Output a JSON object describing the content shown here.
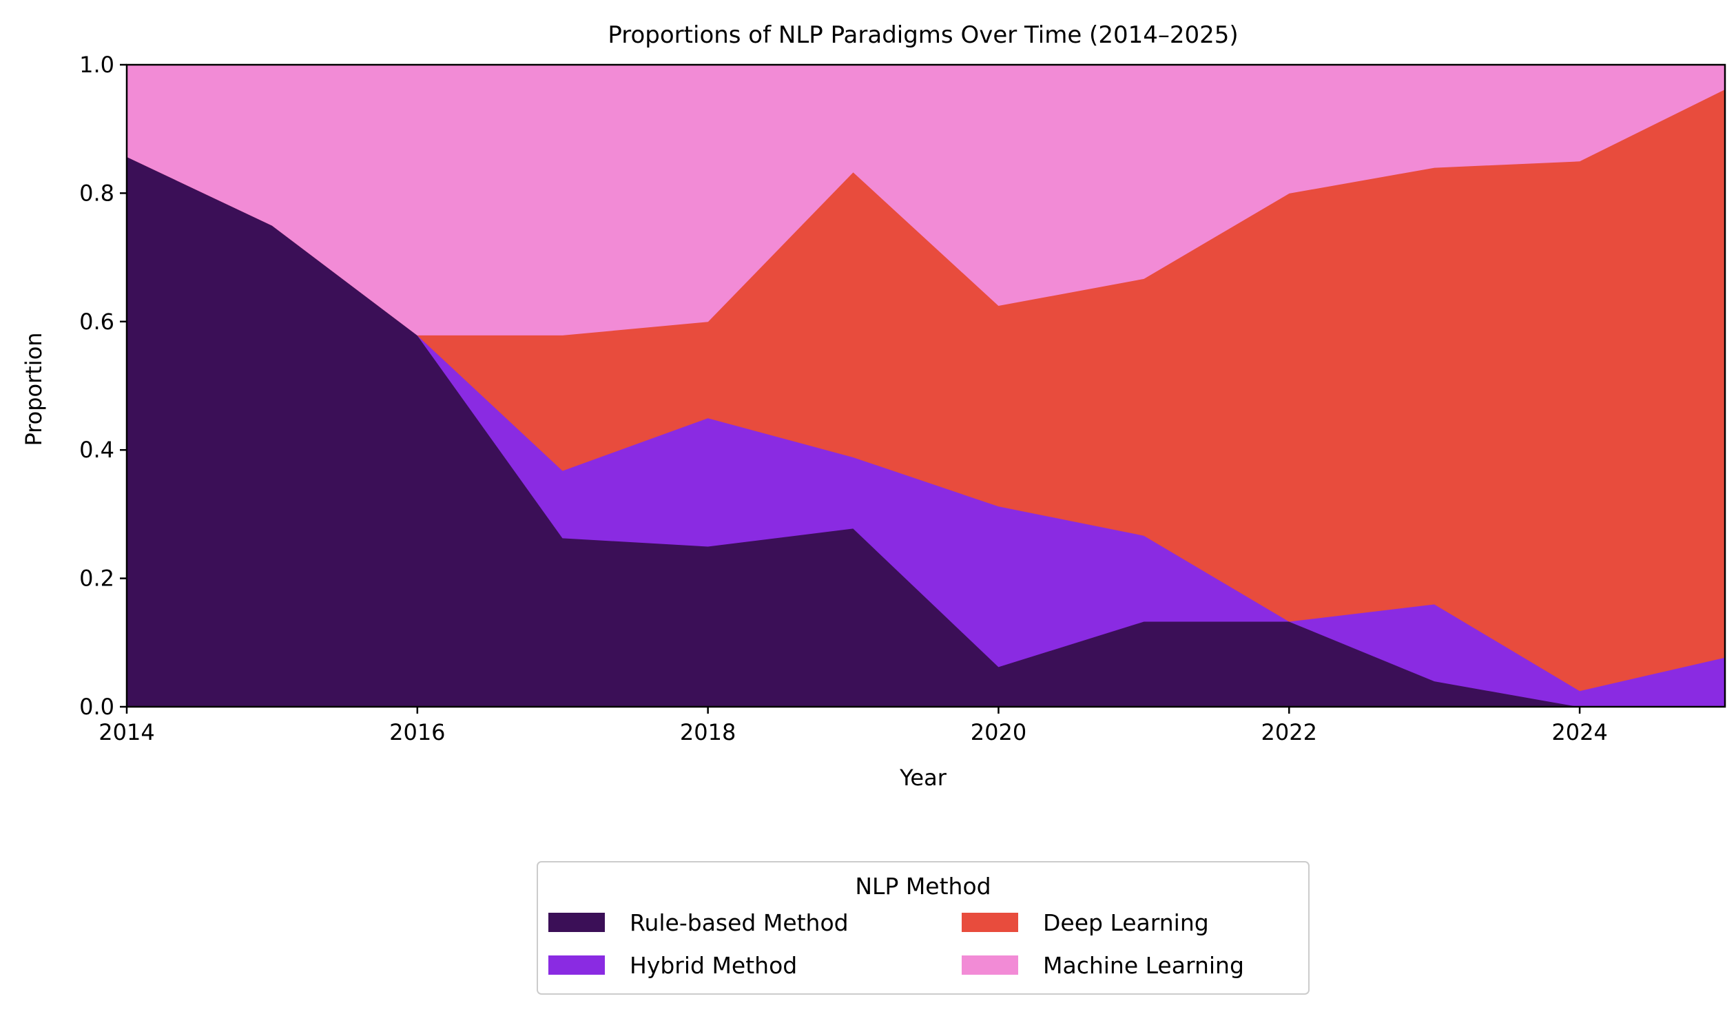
{
  "chart_data": {
    "type": "area",
    "stacked": true,
    "title": "Proportions of NLP Paradigms Over Time (2014–2025)",
    "xlabel": "Year",
    "ylabel": "Proportion",
    "xlim": [
      2014,
      2025
    ],
    "ylim": [
      0,
      1
    ],
    "x_ticks": [
      2014,
      2016,
      2018,
      2020,
      2022,
      2024
    ],
    "x_tick_labels": [
      "2014",
      "2016",
      "2018",
      "2020",
      "2022",
      "2024"
    ],
    "y_ticks": [
      0,
      0.2,
      0.4,
      0.6,
      0.8,
      1.0
    ],
    "y_tick_labels": [
      "0.0",
      "0.2",
      "0.4",
      "0.6",
      "0.8",
      "1.0"
    ],
    "grid": false,
    "legend": {
      "title": "NLP Method",
      "placement": "below-center",
      "columns": 2
    },
    "x": [
      2014,
      2015,
      2016,
      2017,
      2018,
      2019,
      2020,
      2021,
      2022,
      2023,
      2024,
      2025
    ],
    "series": [
      {
        "name": "Rule-based Method",
        "color": "#3b0f57",
        "values": [
          0.857,
          0.75,
          0.579,
          0.263,
          0.25,
          0.278,
          0.0625,
          0.133,
          0.133,
          0.04,
          0.0,
          0.0
        ]
      },
      {
        "name": "Hybrid Method",
        "color": "#8a2be2",
        "values": [
          0.0,
          0.0,
          0.0,
          0.105,
          0.2,
          0.111,
          0.25,
          0.134,
          0.0,
          0.12,
          0.025,
          0.077
        ]
      },
      {
        "name": "Deep Learning",
        "color": "#e84c3d",
        "values": [
          0.0,
          0.0,
          0.0,
          0.211,
          0.15,
          0.444,
          0.3125,
          0.4,
          0.667,
          0.68,
          0.825,
          0.885
        ]
      },
      {
        "name": "Machine Learning",
        "color": "#f28bd6",
        "values": [
          0.143,
          0.25,
          0.421,
          0.421,
          0.4,
          0.167,
          0.375,
          0.333,
          0.2,
          0.16,
          0.15,
          0.038
        ]
      }
    ]
  }
}
